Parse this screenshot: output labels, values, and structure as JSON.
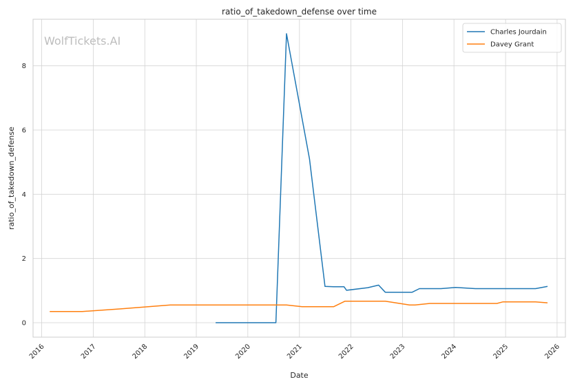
{
  "watermark": "WolfTickets.AI",
  "colors": {
    "charles": "#1f77b4",
    "davey": "#ff7f0e"
  },
  "chart_data": {
    "type": "line",
    "title": "ratio_of_takedown_defense over time",
    "xlabel": "Date",
    "ylabel": "ratio_of_takedown_defense",
    "xlim": [
      "2015-11-01",
      "2026-03-01"
    ],
    "ylim": [
      -0.45,
      9.45
    ],
    "x_ticks": [
      "2016",
      "2017",
      "2018",
      "2019",
      "2020",
      "2021",
      "2022",
      "2023",
      "2024",
      "2025",
      "2026"
    ],
    "y_ticks": [
      0,
      2,
      4,
      6,
      8
    ],
    "grid": true,
    "legend_position": "top-right",
    "series": [
      {
        "name": "Charles Jourdain",
        "points": [
          [
            "2019-05-18",
            0.0
          ],
          [
            "2019-09-01",
            0.0
          ],
          [
            "2020-01-01",
            0.0
          ],
          [
            "2020-07-18",
            0.0
          ],
          [
            "2020-10-01",
            9.0
          ],
          [
            "2021-03-13",
            5.1
          ],
          [
            "2021-07-01",
            1.13
          ],
          [
            "2021-09-01",
            1.12
          ],
          [
            "2021-11-13",
            1.12
          ],
          [
            "2021-12-01",
            1.01
          ],
          [
            "2022-04-30",
            1.09
          ],
          [
            "2022-07-16",
            1.17
          ],
          [
            "2022-09-01",
            0.95
          ],
          [
            "2023-03-11",
            0.95
          ],
          [
            "2023-05-01",
            1.06
          ],
          [
            "2023-10-01",
            1.06
          ],
          [
            "2024-01-13",
            1.1
          ],
          [
            "2024-06-01",
            1.06
          ],
          [
            "2025-08-01",
            1.06
          ],
          [
            "2025-10-25",
            1.13
          ]
        ]
      },
      {
        "name": "Davey Grant",
        "points": [
          [
            "2016-02-27",
            0.35
          ],
          [
            "2016-10-15",
            0.35
          ],
          [
            "2017-07-15",
            0.43
          ],
          [
            "2018-07-01",
            0.55
          ],
          [
            "2020-10-01",
            0.55
          ],
          [
            "2021-01-20",
            0.5
          ],
          [
            "2021-09-01",
            0.5
          ],
          [
            "2021-11-20",
            0.67
          ],
          [
            "2022-09-01",
            0.67
          ],
          [
            "2023-02-20",
            0.55
          ],
          [
            "2023-04-01",
            0.55
          ],
          [
            "2023-07-15",
            0.6
          ],
          [
            "2024-11-01",
            0.6
          ],
          [
            "2024-12-14",
            0.65
          ],
          [
            "2025-08-01",
            0.65
          ],
          [
            "2025-10-25",
            0.62
          ]
        ]
      }
    ]
  }
}
